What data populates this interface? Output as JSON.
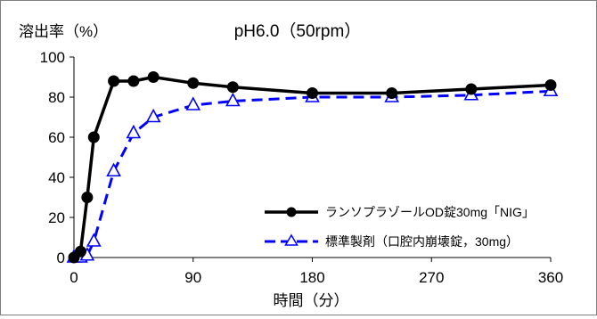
{
  "chart_data": {
    "type": "line",
    "title": "pH6.0（50rpm）",
    "ylabel": "溶出率（%）",
    "xlabel": "時間（分）",
    "xlim": [
      0,
      360
    ],
    "ylim": [
      0,
      100
    ],
    "x_ticks": [
      0,
      90,
      180,
      270,
      360
    ],
    "y_ticks": [
      0,
      20,
      40,
      60,
      80,
      100
    ],
    "grid": false,
    "legend_position": "bottom-right",
    "series": [
      {
        "name": "ランソプラゾールOD錠30mg「NIG」",
        "color": "#000000",
        "marker": "filled-circle",
        "line": "solid",
        "x": [
          0,
          5,
          10,
          15,
          30,
          45,
          60,
          90,
          120,
          180,
          240,
          300,
          360
        ],
        "y": [
          0,
          3,
          30,
          60,
          88,
          88,
          90,
          87,
          85,
          82,
          82,
          84,
          86
        ]
      },
      {
        "name": "標準製剤（口腔内崩壊錠，30mg）",
        "color": "#0000ff",
        "marker": "open-triangle",
        "line": "dashed",
        "x": [
          0,
          5,
          10,
          15,
          30,
          45,
          60,
          90,
          120,
          180,
          240,
          300,
          360
        ],
        "y": [
          0,
          0,
          1,
          8,
          43,
          62,
          70,
          76,
          78,
          80,
          80,
          81,
          83
        ]
      }
    ]
  }
}
